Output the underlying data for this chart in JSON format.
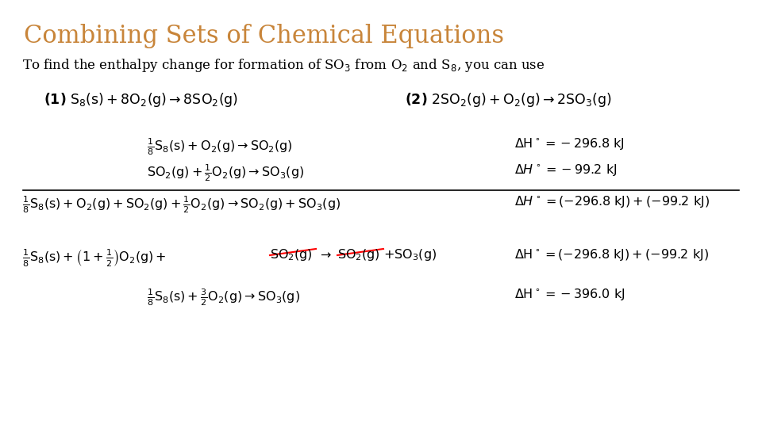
{
  "title": "Combining Sets of Chemical Equations",
  "title_color": "#C8853A",
  "title_fontsize": 22,
  "bg_color": "#FFFFFF",
  "body_fontsize": 12,
  "small_fontsize": 11
}
